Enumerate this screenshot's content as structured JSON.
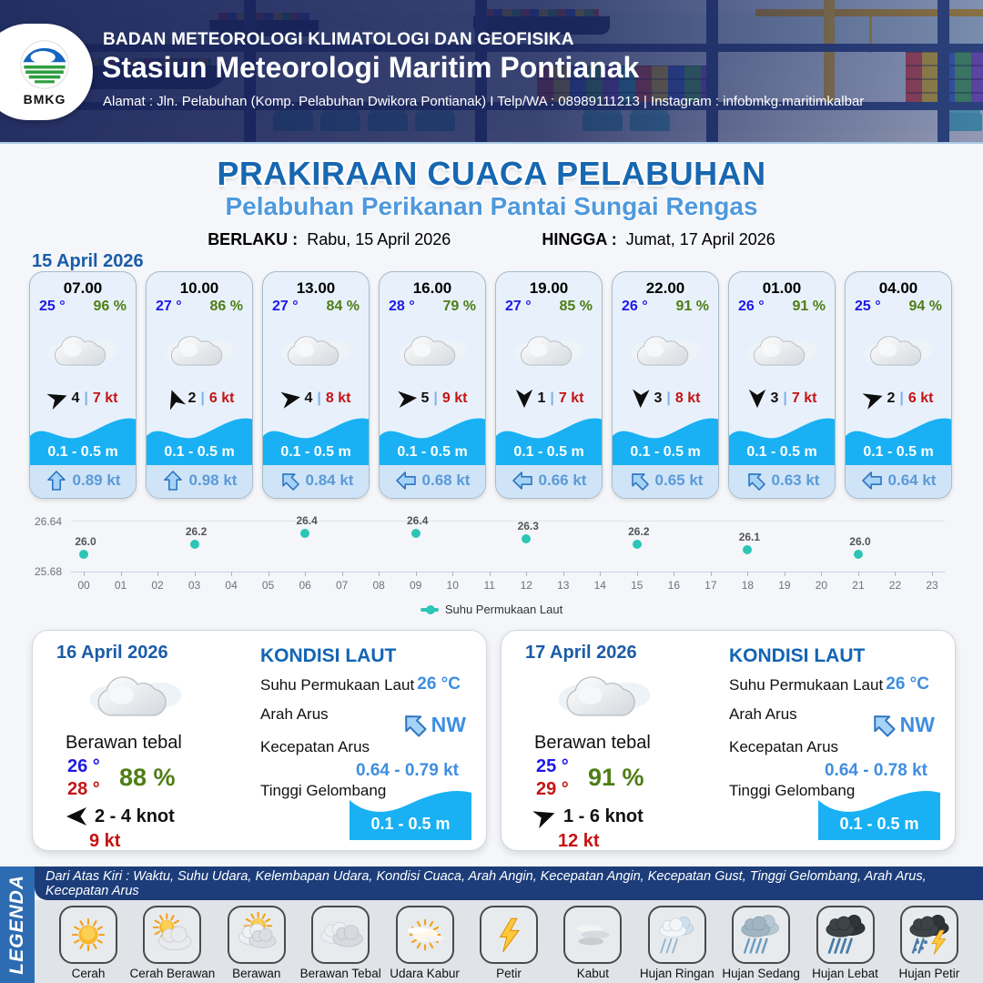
{
  "header": {
    "org": "BADAN METEOROLOGI KLIMATOLOGI DAN GEOFISIKA",
    "station": "Stasiun Meteorologi Maritim Pontianak",
    "address": "Alamat : Jln. Pelabuhan (Komp. Pelabuhan Dwikora Pontianak) I Telp/WA : 08989111213 | Instagram : infobmkg.maritimkalbar",
    "logo_text": "BMKG"
  },
  "title": {
    "main": "PRAKIRAAN CUACA PELABUHAN",
    "subtitle": "Pelabuhan Perikanan Pantai Sungai Rengas",
    "valid_label": "BERLAKU :",
    "valid_value": "Rabu, 15 April 2026",
    "until_label": "HINGGA :",
    "until_value": "Jumat, 17 April 2026"
  },
  "ui": {
    "wind_divider": "|"
  },
  "forecast_day": {
    "date": "15 April 2026",
    "hours": [
      {
        "time": "07.00",
        "temp": "25 °",
        "humidity": "96 %",
        "weather": "berawan-tebal",
        "wind_dir_deg": -20,
        "wind_speed": "4",
        "gust": "7 kt",
        "wave": "0.1 - 0.5 m",
        "current_dir_deg": 0,
        "current": "0.89 kt"
      },
      {
        "time": "10.00",
        "temp": "27 °",
        "humidity": "86 %",
        "weather": "berawan-tebal",
        "wind_dir_deg": -110,
        "wind_speed": "2",
        "gust": "6 kt",
        "wave": "0.1 - 0.5 m",
        "current_dir_deg": 0,
        "current": "0.98 kt"
      },
      {
        "time": "13.00",
        "temp": "27 °",
        "humidity": "84 %",
        "weather": "berawan-tebal",
        "wind_dir_deg": -10,
        "wind_speed": "4",
        "gust": "8 kt",
        "wave": "0.1 - 0.5 m",
        "current_dir_deg": -45,
        "current": "0.84 kt"
      },
      {
        "time": "16.00",
        "temp": "28 °",
        "humidity": "79 %",
        "weather": "berawan-tebal",
        "wind_dir_deg": -5,
        "wind_speed": "5",
        "gust": "9 kt",
        "wave": "0.1 - 0.5 m",
        "current_dir_deg": -90,
        "current": "0.68 kt"
      },
      {
        "time": "19.00",
        "temp": "27 °",
        "humidity": "85 %",
        "weather": "berawan-tebal",
        "wind_dir_deg": 90,
        "wind_speed": "1",
        "gust": "7 kt",
        "wave": "0.1 - 0.5 m",
        "current_dir_deg": -90,
        "current": "0.66 kt"
      },
      {
        "time": "22.00",
        "temp": "26 °",
        "humidity": "91 %",
        "weather": "berawan-tebal",
        "wind_dir_deg": 92,
        "wind_speed": "3",
        "gust": "8 kt",
        "wave": "0.1 - 0.5 m",
        "current_dir_deg": -45,
        "current": "0.65 kt"
      },
      {
        "time": "01.00",
        "temp": "26 °",
        "humidity": "91 %",
        "weather": "berawan-tebal",
        "wind_dir_deg": 90,
        "wind_speed": "3",
        "gust": "7 kt",
        "wave": "0.1 - 0.5 m",
        "current_dir_deg": -45,
        "current": "0.63 kt"
      },
      {
        "time": "04.00",
        "temp": "25 °",
        "humidity": "94 %",
        "weather": "berawan-tebal",
        "wind_dir_deg": -18,
        "wind_speed": "2",
        "gust": "6 kt",
        "wave": "0.1 - 0.5 m",
        "current_dir_deg": -90,
        "current": "0.64 kt"
      }
    ]
  },
  "chart_data": {
    "type": "scatter",
    "series_name": "Suhu Permukaan Laut",
    "x_hours": [
      0,
      3,
      6,
      9,
      12,
      15,
      18,
      21
    ],
    "values": [
      26.0,
      26.2,
      26.4,
      26.4,
      26.3,
      26.2,
      26.1,
      26.0
    ],
    "point_labels": [
      "26.0",
      "26.2",
      "26.4",
      "26.4",
      "26.3",
      "26.2",
      "26.1",
      "26.0"
    ],
    "x_ticks": [
      "00",
      "01",
      "02",
      "03",
      "04",
      "05",
      "06",
      "07",
      "08",
      "09",
      "10",
      "11",
      "12",
      "13",
      "14",
      "15",
      "16",
      "17",
      "18",
      "19",
      "20",
      "21",
      "22",
      "23"
    ],
    "y_ticks": [
      "26.64",
      "25.68"
    ],
    "ylim": [
      25.68,
      26.64
    ],
    "marker_color": "#2cc5b6",
    "grid": "top gridline and bottom axis only",
    "legend_position": "bottom-center"
  },
  "days": [
    {
      "date": "16 April 2026",
      "condition": "Berawan tebal",
      "temp_min": "26 °",
      "temp_max": "28 °",
      "humidity": "88 %",
      "wind_dir_deg": 180,
      "wind_range": "2  - 4 knot",
      "gust": "9 kt",
      "sea": {
        "title": "KONDISI LAUT",
        "sst_label": "Suhu Permukaan Laut",
        "sst_value": "26 °C",
        "current_dir_label": "Arah Arus",
        "current_dir_value": "NW",
        "current_dir_deg": -45,
        "current_speed_label": "Kecepatan Arus",
        "current_speed_value": "0.64 - 0.79 kt",
        "wave_label": "Tinggi Gelombang",
        "wave_value": "0.1 - 0.5 m"
      }
    },
    {
      "date": "17 April 2026",
      "condition": "Berawan tebal",
      "temp_min": "25 °",
      "temp_max": "29 °",
      "humidity": "91 %",
      "wind_dir_deg": -20,
      "wind_range": "1  - 6 knot",
      "gust": "12 kt",
      "sea": {
        "title": "KONDISI LAUT",
        "sst_label": "Suhu Permukaan Laut",
        "sst_value": "26 °C",
        "current_dir_label": "Arah Arus",
        "current_dir_value": "NW",
        "current_dir_deg": -45,
        "current_speed_label": "Kecepatan Arus",
        "current_speed_value": "0.64 - 0.78 kt",
        "wave_label": "Tinggi Gelombang",
        "wave_value": "0.1 - 0.5 m"
      }
    }
  ],
  "legend": {
    "sidebar": "LEGENDA",
    "description": "Dari Atas Kiri : Waktu, Suhu Udara, Kelembapan Udara, Kondisi Cuaca, Arah Angin, Kecepatan Angin, Kecepatan Gust, Tinggi Gelombang, Arah Arus, Kecepatan Arus",
    "items": [
      {
        "label": "Cerah",
        "icon": "sun"
      },
      {
        "label": "Cerah Berawan",
        "icon": "sun-cloud"
      },
      {
        "label": "Berawan",
        "icon": "cloud-sun"
      },
      {
        "label": "Berawan Tebal",
        "icon": "clouds"
      },
      {
        "label": "Udara Kabur",
        "icon": "haze"
      },
      {
        "label": "Petir",
        "icon": "lightning"
      },
      {
        "label": "Kabut",
        "icon": "fog"
      },
      {
        "label": "Hujan Ringan",
        "icon": "rain-light"
      },
      {
        "label": "Hujan Sedang",
        "icon": "rain-medium"
      },
      {
        "label": "Hujan Lebat",
        "icon": "rain-heavy"
      },
      {
        "label": "Hujan Petir",
        "icon": "rain-thunder"
      }
    ]
  }
}
